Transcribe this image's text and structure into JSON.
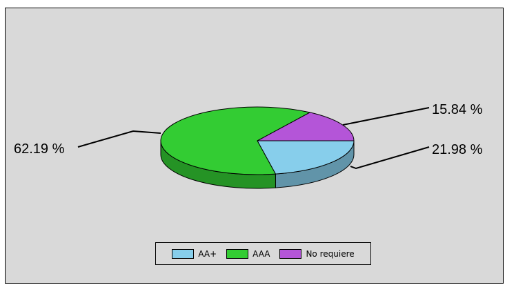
{
  "chart_data": {
    "type": "pie",
    "title": "",
    "categories": [
      "AA+",
      "AAA",
      "No requiere"
    ],
    "values": [
      21.98,
      62.19,
      15.84
    ],
    "labels": [
      "21.98 %",
      "62.19 %",
      "15.84 %"
    ],
    "colors": [
      "#87ceeb",
      "#33cc33",
      "#b455d8"
    ],
    "legend_position": "bottom",
    "style": "3d"
  }
}
